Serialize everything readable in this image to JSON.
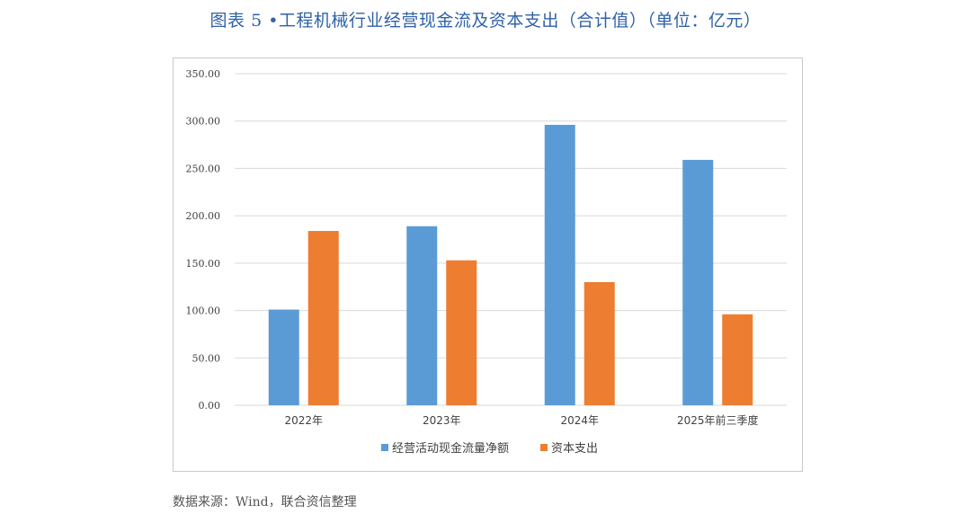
{
  "figure": {
    "title": "图表 5 •工程机械行业经营现金流及资本支出（合计值）（单位：亿元）",
    "source": "数据来源：Wind，联合资信整理"
  },
  "colors": {
    "series_0": "#5b9bd5",
    "series_1": "#ed7d31",
    "gridline": "#d9d9d9",
    "title": "#2f62a8"
  },
  "chart_data": {
    "type": "bar",
    "title": "",
    "xlabel": "",
    "ylabel": "",
    "categories": [
      "2022年",
      "2023年",
      "2024年",
      "2025年前三季度"
    ],
    "series": [
      {
        "name": "经营活动现金流量净额",
        "values": [
          101,
          189,
          296,
          259
        ]
      },
      {
        "name": "资本支出",
        "values": [
          184,
          153,
          130,
          96
        ]
      }
    ],
    "ylim": [
      0,
      350
    ],
    "yticks": [
      "0.00",
      "50.00",
      "100.00",
      "150.00",
      "200.00",
      "250.00",
      "300.00",
      "350.00"
    ],
    "ytick_values": [
      0,
      50,
      100,
      150,
      200,
      250,
      300,
      350
    ],
    "grid": true,
    "legend_position": "bottom"
  }
}
